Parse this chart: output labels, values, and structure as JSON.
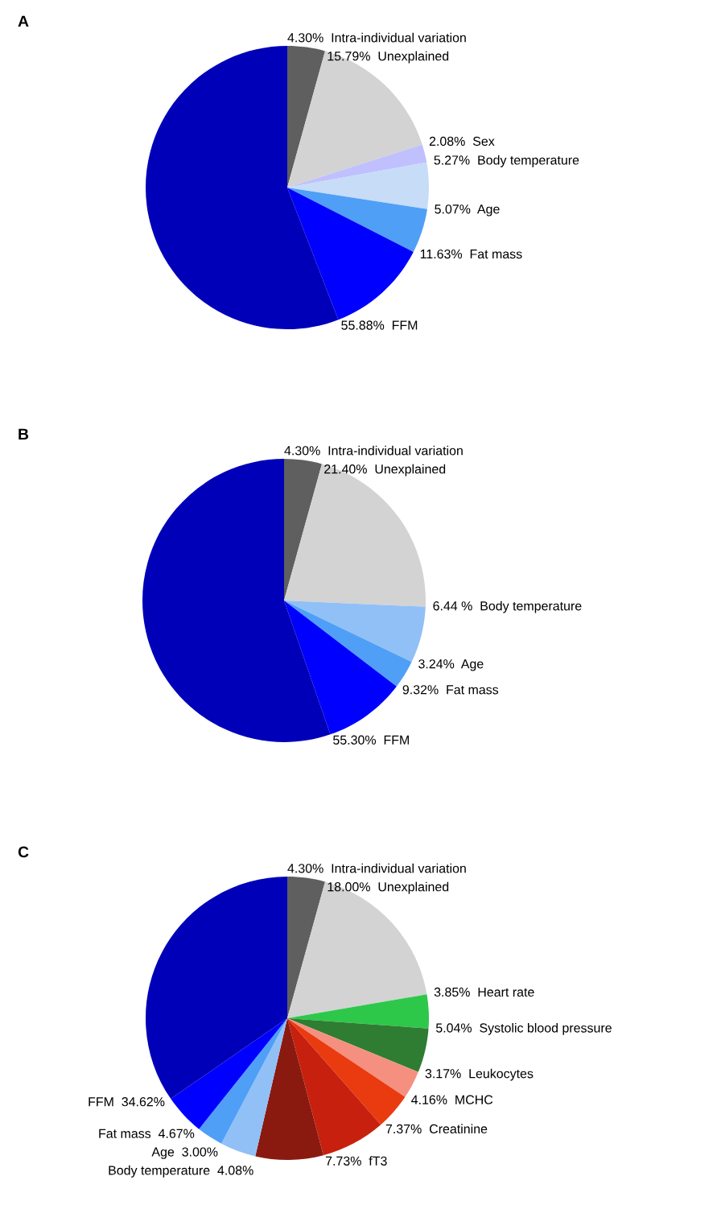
{
  "chart_data": [
    {
      "type": "pie",
      "title": "A",
      "categories": [
        "Intra-individual variation",
        "Unexplained",
        "Sex",
        "Body temperature",
        "Age",
        "Fat mass",
        "FFM"
      ],
      "values": [
        4.3,
        15.79,
        2.08,
        5.27,
        5.07,
        11.63,
        55.88
      ],
      "value_labels": [
        "4.30%",
        "15.79%",
        "2.08%",
        "5.27%",
        "5.07%",
        "11.63%",
        "55.88%"
      ],
      "colors": [
        "#5f5f5f",
        "#d3d3d3",
        "#c0c0ff",
        "#c6dcf7",
        "#4f9ff7",
        "#0000ff",
        "#0000b8"
      ]
    },
    {
      "type": "pie",
      "title": "B",
      "categories": [
        "Intra-individual variation",
        "Unexplained",
        "Body temperature",
        "Age",
        "Fat mass",
        "FFM"
      ],
      "values": [
        4.3,
        21.4,
        6.44,
        3.24,
        9.32,
        55.3
      ],
      "value_labels": [
        "4.30%",
        "21.40%",
        "6.44 %",
        "3.24%",
        "9.32%",
        "55.30%"
      ],
      "colors": [
        "#5f5f5f",
        "#d3d3d3",
        "#91c0f7",
        "#4f9ff7",
        "#0000ff",
        "#0000b8"
      ]
    },
    {
      "type": "pie",
      "title": "C",
      "categories": [
        "Intra-individual variation",
        "Unexplained",
        "Heart rate",
        "Systolic blood pressure",
        "Leukocytes",
        "MCHC",
        "Creatinine",
        "fT3",
        "Body temperature",
        "Age",
        "Fat mass",
        "FFM"
      ],
      "values": [
        4.3,
        18.0,
        3.85,
        5.04,
        3.17,
        4.16,
        7.37,
        7.73,
        4.08,
        3.0,
        4.67,
        34.62
      ],
      "value_labels": [
        "4.30%",
        "18.00%",
        "3.85%",
        "5.04%",
        "3.17%",
        "4.16%",
        "7.37%",
        "7.73%",
        "4.08%",
        "3.00%",
        "4.67%",
        "34.62%"
      ],
      "colors": [
        "#5f5f5f",
        "#d3d3d3",
        "#2dc84a",
        "#2e7d32",
        "#f59080",
        "#ea3b10",
        "#c8200e",
        "#8a1a10",
        "#91c0f7",
        "#4f9ff7",
        "#0000ff",
        "#0000b8"
      ]
    }
  ]
}
